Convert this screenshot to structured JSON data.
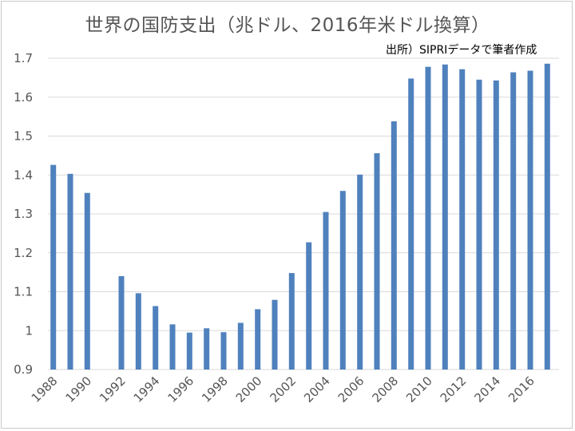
{
  "chart_data": {
    "type": "bar",
    "title": "世界の国防支出（兆ドル、2016年米ドル換算）",
    "annotation": "出所）SIPRIデータで筆者作成",
    "xlabel": "",
    "ylabel": "",
    "ylim": [
      0.9,
      1.7
    ],
    "yticks": [
      "0.9",
      "1",
      "1.1",
      "1.2",
      "1.3",
      "1.4",
      "1.5",
      "1.6",
      "1.7"
    ],
    "grid": true,
    "legend": "none",
    "bar_color": "#4f81bd",
    "categories": [
      "1988",
      "1989",
      "1990",
      "1991",
      "1992",
      "1993",
      "1994",
      "1995",
      "1996",
      "1997",
      "1998",
      "1999",
      "2000",
      "2001",
      "2002",
      "2003",
      "2004",
      "2005",
      "2006",
      "2007",
      "2008",
      "2009",
      "2010",
      "2011",
      "2012",
      "2013",
      "2014",
      "2015",
      "2016",
      "2017"
    ],
    "xtick_labels": [
      "1988",
      "1990",
      "1992",
      "1994",
      "1996",
      "1998",
      "2000",
      "2002",
      "2004",
      "2006",
      "2008",
      "2010",
      "2012",
      "2014",
      "2016"
    ],
    "values": [
      1.426,
      1.403,
      1.354,
      null,
      1.14,
      1.096,
      1.063,
      1.016,
      0.995,
      1.006,
      0.996,
      1.02,
      1.055,
      1.079,
      1.148,
      1.227,
      1.305,
      1.359,
      1.401,
      1.456,
      1.538,
      1.648,
      1.678,
      1.684,
      1.672,
      1.645,
      1.643,
      1.664,
      1.668,
      1.686
    ]
  }
}
